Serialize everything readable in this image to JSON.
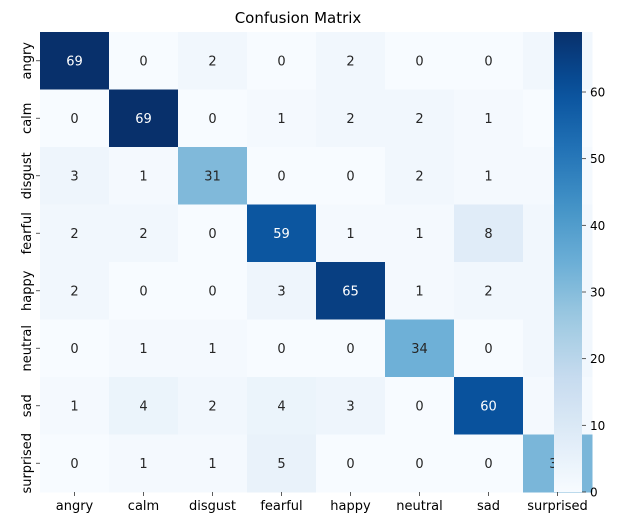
{
  "chart_data": {
    "type": "heatmap",
    "title": "Confusion Matrix",
    "xlabel": "",
    "ylabel": "",
    "x_categories": [
      "angry",
      "calm",
      "disgust",
      "fearful",
      "happy",
      "neutral",
      "sad",
      "surprised"
    ],
    "y_categories": [
      "angry",
      "calm",
      "disgust",
      "fearful",
      "happy",
      "neutral",
      "sad",
      "surprised"
    ],
    "values": [
      [
        69,
        0,
        2,
        0,
        2,
        0,
        0,
        2
      ],
      [
        0,
        69,
        0,
        1,
        2,
        2,
        1,
        0
      ],
      [
        3,
        1,
        31,
        0,
        0,
        2,
        1,
        1
      ],
      [
        2,
        2,
        0,
        59,
        1,
        1,
        8,
        2
      ],
      [
        2,
        0,
        0,
        3,
        65,
        1,
        2,
        2
      ],
      [
        0,
        1,
        1,
        0,
        0,
        34,
        0,
        2
      ],
      [
        1,
        4,
        2,
        4,
        3,
        0,
        60,
        1
      ],
      [
        0,
        1,
        1,
        5,
        0,
        0,
        0,
        32
      ]
    ],
    "colormap": "Blues",
    "color_range": [
      0,
      69
    ],
    "colorbar_ticks": [
      0,
      10,
      20,
      30,
      40,
      50,
      60
    ],
    "annotated": true,
    "grid": false,
    "legend": "colorbar-right"
  }
}
